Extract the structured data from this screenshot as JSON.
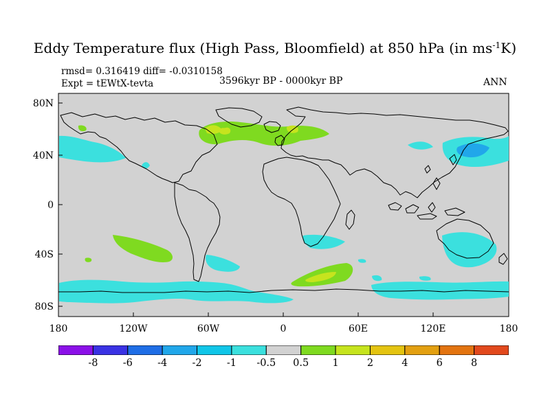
{
  "title": {
    "main": "Eddy Temperature flux (High Pass, Bloomfield) at 850 hPa (in ms",
    "sup": "-1",
    "tail": "K)"
  },
  "stats": {
    "line1": "rmsd= 0.316419 diff= -0.0310158",
    "experiment": "Expt = tEWtX-tevta"
  },
  "period": "3596kyr BP - 0000kyr BP",
  "season": "ANN",
  "axis_labels": {
    "lat": [
      "80N",
      "40N",
      "0",
      "40S",
      "80S"
    ],
    "lon": [
      "180",
      "120W",
      "60W",
      "0",
      "60E",
      "120E",
      "180"
    ]
  },
  "colorbar": {
    "colors": [
      "#8b10e8",
      "#3a32e4",
      "#1f6ee6",
      "#21a7ea",
      "#10c6e8",
      "#3be0de",
      "#d2d2d2",
      "#7fda20",
      "#c6e41e",
      "#e4c411",
      "#e3a011",
      "#e37410",
      "#e2491d"
    ],
    "labels": [
      "-8",
      "-6",
      "-4",
      "-2",
      "-1",
      "-0.5",
      "0.5",
      "1",
      "2",
      "4",
      "6",
      "8"
    ]
  },
  "map": {
    "background_color": "#d2d2d2",
    "positive_fill_color": "#7fda20",
    "positive_strong_color": "#c6e41e",
    "negative_fill_color": "#3be0de",
    "negative_strong_color": "#21a7ea",
    "coastline_color": "#000000"
  }
}
